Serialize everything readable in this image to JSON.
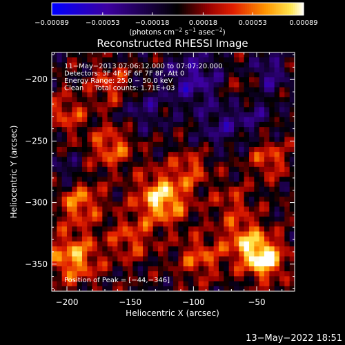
{
  "chart_data": {
    "type": "heatmap",
    "title": "Reconstructed RHESSI Image",
    "xlabel": "Heliocentric X (arcsec)",
    "ylabel": "Heliocentric Y (arcsec)",
    "xlim": [
      -212,
      -20
    ],
    "ylim": [
      -372,
      -178
    ],
    "x_ticks": [
      -200,
      -150,
      -100,
      -50
    ],
    "x_tick_labels": [
      "−200",
      "−150",
      "−100",
      "−50"
    ],
    "y_ticks": [
      -200,
      -250,
      -300,
      -350
    ],
    "y_tick_labels": [
      "−200",
      "−250",
      "−300",
      "−350"
    ],
    "colorbar": {
      "min": -0.00089,
      "max": 0.00089,
      "ticks": [
        -0.00089,
        -0.00053,
        -0.00018,
        0.00018,
        0.00053,
        0.00089
      ],
      "tick_labels": [
        "−0.00089",
        "−0.00053",
        "−0.00018",
        "0.00018",
        "0.00053",
        "0.00089"
      ],
      "label_main": "(photons cm",
      "label_exp1": "−2",
      "label_mid1": " s",
      "label_exp2": "−1",
      "label_mid2": " asec",
      "label_exp3": "−2",
      "label_end": ")"
    },
    "annotations": [
      "11−May−2013 07:06:12.000 to 07:07:20.000",
      "Detectors: 3F 4F 5F 6F 7F 8F, Att 0",
      "Energy Range: 25.0 − 50.0 keV",
      "Clean     Total counts: 1.71E+03"
    ],
    "peak_label": "Position of Peak = [−44,−346]",
    "peak_position": [
      -44,
      -346
    ],
    "peaks": [
      {
        "x": -125,
        "y": -297,
        "value": 0.0008,
        "sigma": 14
      },
      {
        "x": -102,
        "y": -272,
        "value": 0.0004,
        "sigma": 10
      },
      {
        "x": -195,
        "y": -345,
        "value": 0.00065,
        "sigma": 14
      },
      {
        "x": -44,
        "y": -346,
        "value": 0.00089,
        "sigma": 11
      },
      {
        "x": -60,
        "y": -330,
        "value": 0.00055,
        "sigma": 12
      },
      {
        "x": -165,
        "y": -255,
        "value": 0.0005,
        "sigma": 12
      },
      {
        "x": -190,
        "y": -300,
        "value": 0.00055,
        "sigma": 12
      },
      {
        "x": -150,
        "y": -330,
        "value": 0.0004,
        "sigma": 12
      },
      {
        "x": -95,
        "y": -345,
        "value": 0.00045,
        "sigma": 12
      },
      {
        "x": -70,
        "y": -300,
        "value": 0.0003,
        "sigma": 11
      },
      {
        "x": -40,
        "y": -265,
        "value": 0.00045,
        "sigma": 10
      },
      {
        "x": -60,
        "y": -210,
        "value": 0.0003,
        "sigma": 10
      },
      {
        "x": -165,
        "y": -205,
        "value": 0.0004,
        "sigma": 11
      },
      {
        "x": -200,
        "y": -228,
        "value": 0.0004,
        "sigma": 11
      }
    ],
    "dips": [
      {
        "x": -100,
        "y": -200,
        "value": -0.00045,
        "sigma": 16
      },
      {
        "x": -140,
        "y": -225,
        "value": -0.0003,
        "sigma": 12
      },
      {
        "x": -55,
        "y": -225,
        "value": -0.00035,
        "sigma": 12
      },
      {
        "x": -40,
        "y": -195,
        "value": -0.0004,
        "sigma": 10
      },
      {
        "x": -80,
        "y": -240,
        "value": -0.0003,
        "sigma": 12
      },
      {
        "x": -200,
        "y": -275,
        "value": -0.00025,
        "sigma": 10
      }
    ]
  },
  "footer": {
    "timestamp": "13−May−2022 18:51"
  },
  "colors": {
    "background": "#000000",
    "foreground": "#ffffff"
  }
}
